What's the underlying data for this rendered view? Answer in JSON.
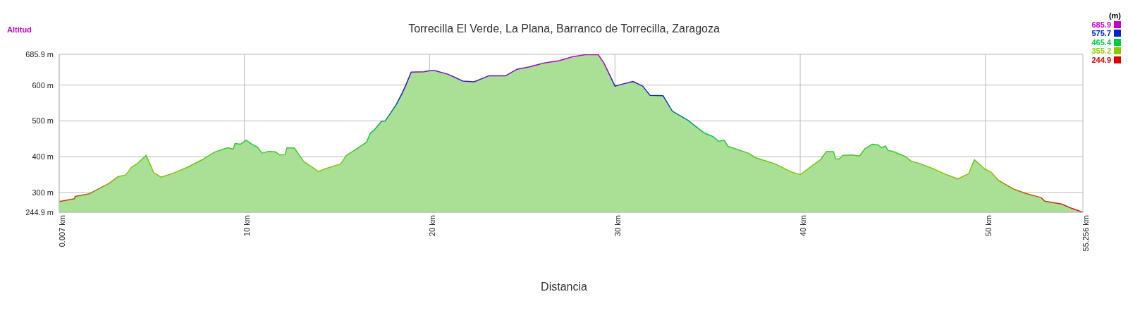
{
  "chart_data": {
    "type": "area",
    "title": "Torrecilla El Verde, La Plana, Barranco de Torrecilla, Zaragoza",
    "xlabel": "Distancia",
    "ylabel": "Altitud",
    "clabel": "(m)",
    "clim": [
      244.9,
      685.9
    ],
    "cticks": [
      685.9,
      575.7,
      465.4,
      355.2,
      244.9
    ],
    "colors": [
      "#cc00cc",
      "#0022cc",
      "#00cc44",
      "#88cc00",
      "#dd0000"
    ],
    "x": [
      0.007,
      0.84,
      0.86,
      1.6,
      2.7,
      3.2,
      3.6,
      3.9,
      4.2,
      4.7,
      4.9,
      5.1,
      5.5,
      6.1,
      6.9,
      7.7,
      8.4,
      9.1,
      9.4,
      9.5,
      9.8,
      10.1,
      10.4,
      10.7,
      10.95,
      11.3,
      11.7,
      11.9,
      12.2,
      12.3,
      12.7,
      13.2,
      14.0,
      14.4,
      15.2,
      15.5,
      16.2,
      16.6,
      16.8,
      17.0,
      17.4,
      17.6,
      17.8,
      18.2,
      18.5,
      18.7,
      19.0,
      19.7,
      20.0,
      20.3,
      21.0,
      21.8,
      22.4,
      23.2,
      24.1,
      24.7,
      25.4,
      26.2,
      27.0,
      27.7,
      28.4,
      29.1,
      29.4,
      29.7,
      30.0,
      30.2,
      30.97,
      31.5,
      31.9,
      32.6,
      33.1,
      33.9,
      34.8,
      35.3,
      35.6,
      35.9,
      36.1,
      37.2,
      37.6,
      38.15,
      38.65,
      39.5,
      40.0,
      40.7,
      41.1,
      41.4,
      41.8,
      41.9,
      42.1,
      42.3,
      42.8,
      43.2,
      43.5,
      43.9,
      44.2,
      44.4,
      44.6,
      44.75,
      45.0,
      45.7,
      46.0,
      46.4,
      47.2,
      47.8,
      48.5,
      49.1,
      49.4,
      49.95,
      50.3,
      50.7,
      51.5,
      52.2,
      53.0,
      53.2,
      54.1,
      54.6,
      55.256
    ],
    "series": [
      {
        "color": "#aae096",
        "values": [
          275,
          283,
          289,
          296,
          326,
          345,
          349,
          370,
          380,
          404,
          380,
          356,
          343,
          353,
          370,
          391,
          413,
          425,
          421,
          437,
          435,
          446,
          435,
          427,
          410,
          415,
          413,
          405,
          406,
          425,
          424,
          387,
          359,
          367,
          380,
          403,
          427,
          441,
          466,
          474,
          499,
          500,
          515,
          546,
          576,
          598,
          636,
          637,
          640,
          640,
          630,
          611,
          609,
          626,
          626,
          644,
          651,
          662,
          668,
          679,
          685,
          685,
          662,
          630,
          597,
          600,
          610,
          597,
          571,
          570,
          527,
          503,
          467,
          456,
          443,
          446,
          429,
          410,
          397,
          388,
          380,
          358,
          350,
          377,
          392,
          414,
          414,
          395,
          393,
          404,
          405,
          402,
          423,
          435,
          433,
          425,
          430,
          417,
          415,
          400,
          387,
          382,
          366,
          352,
          338,
          353,
          392,
          366,
          357,
          334,
          310,
          297,
          286,
          276,
          268,
          257,
          245
        ]
      }
    ],
    "xlim": [
      0.007,
      55.256
    ],
    "xticks": [
      {
        "value": 0.007,
        "label": "0.007 km"
      },
      {
        "value": 10,
        "label": "10 km"
      },
      {
        "value": 20,
        "label": "20 km"
      },
      {
        "value": 30,
        "label": "30 km"
      },
      {
        "value": 40,
        "label": "40 km"
      },
      {
        "value": 50,
        "label": "50 km"
      },
      {
        "value": 55.256,
        "label": "55.256 km"
      }
    ],
    "ylim": [
      244.9,
      685.9
    ],
    "yticks": [
      {
        "value": 244.9,
        "label": "244.9 m"
      },
      {
        "value": 300,
        "label": "300 m"
      },
      {
        "value": 400,
        "label": "400 m"
      },
      {
        "value": 500,
        "label": "500 m"
      },
      {
        "value": 600,
        "label": "600 m"
      },
      {
        "value": 685.9,
        "label": "685.9 m"
      }
    ],
    "grid": true
  }
}
